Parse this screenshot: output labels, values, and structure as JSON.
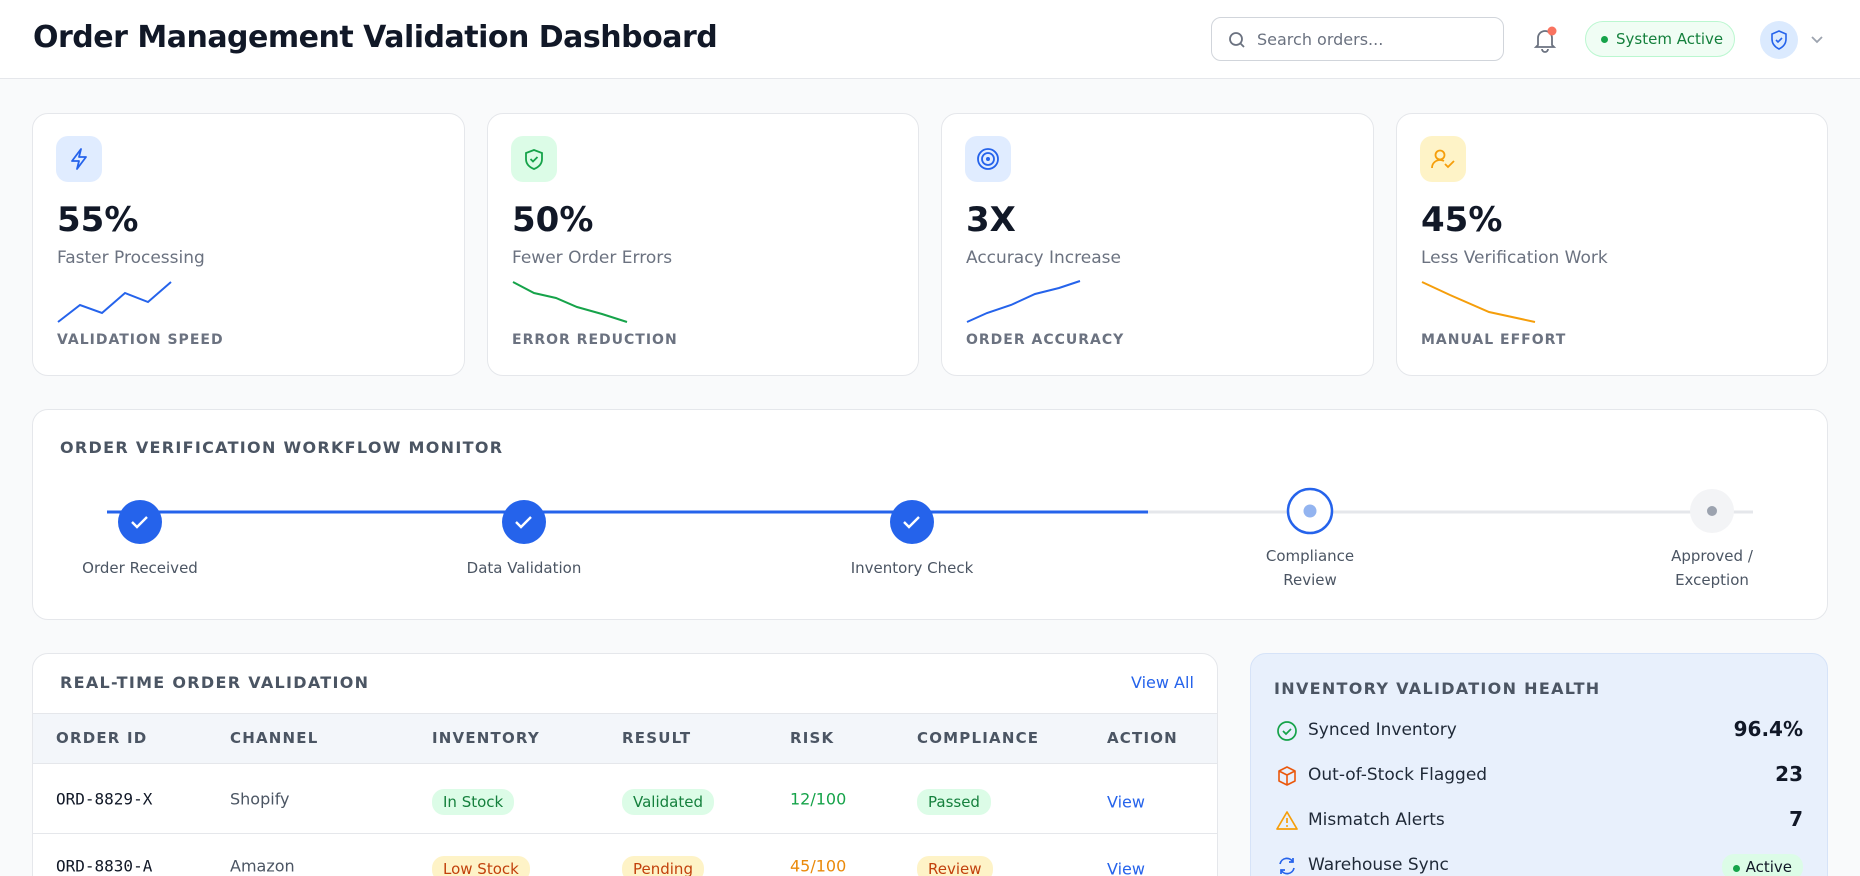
{
  "header": {
    "title": "Order Management Validation Dashboard",
    "search_placeholder": "Search orders...",
    "status": "System Active"
  },
  "stats": [
    {
      "value": "55%",
      "label": "Faster Processing",
      "caption": "VALIDATION SPEED"
    },
    {
      "value": "50%",
      "label": "Fewer Order Errors",
      "caption": "ERROR REDUCTION"
    },
    {
      "value": "3X",
      "label": "Accuracy Increase",
      "caption": "ORDER ACCURACY"
    },
    {
      "value": "45%",
      "label": "Less Verification Work",
      "caption": "MANUAL EFFORT"
    }
  ],
  "workflow": {
    "title": "ORDER VERIFICATION WORKFLOW MONITOR",
    "steps": [
      "Order Received",
      "Data Validation",
      "Inventory Check",
      "Compliance Review",
      "Approved / Exception"
    ]
  },
  "table": {
    "title": "REAL-TIME ORDER VALIDATION",
    "view_all": "View All",
    "columns": [
      "ORDER ID",
      "CHANNEL",
      "INVENTORY",
      "RESULT",
      "RISK",
      "COMPLIANCE",
      "ACTION"
    ],
    "rows": [
      [
        "ORD-8829-X",
        "Shopify",
        "In Stock",
        "Validated",
        "12/100",
        "Passed",
        "View"
      ],
      [
        "ORD-8830-A",
        "Amazon",
        "Low Stock",
        "Pending",
        "45/100",
        "Review",
        "View"
      ]
    ]
  },
  "health": {
    "title": "INVENTORY VALIDATION HEALTH",
    "items": [
      {
        "label": "Synced Inventory",
        "value": "96.4%"
      },
      {
        "label": "Out-of-Stock Flagged",
        "value": "23"
      },
      {
        "label": "Mismatch Alerts",
        "value": "7"
      },
      {
        "label": "Warehouse Sync",
        "value": "Active"
      }
    ]
  }
}
